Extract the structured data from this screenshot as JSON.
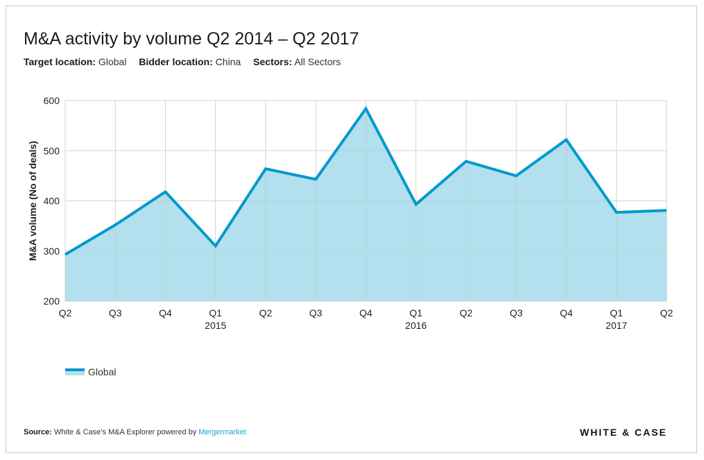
{
  "header": {
    "title": "M&A activity by volume Q2 2014 – Q2 2017",
    "filters": [
      {
        "label": "Target location:",
        "value": "Global"
      },
      {
        "label": "Bidder location:",
        "value": "China"
      },
      {
        "label": "Sectors:",
        "value": "All Sectors"
      }
    ]
  },
  "footer": {
    "source_label": "Source:",
    "source_text": "White & Case’s M&A Explorer powered by",
    "source_link": "Mergermarket",
    "logo": "WHITE & CASE"
  },
  "colors": {
    "line": "#0099cc",
    "fill": "#b2e0ee",
    "grid": "#c8c8c8"
  },
  "chart_data": {
    "type": "area",
    "title": "M&A activity by volume Q2 2014 – Q2 2017",
    "ylabel": "M&A volume (No of deals)",
    "xlabel": "",
    "ylim": [
      200,
      600
    ],
    "yticks": [
      200,
      300,
      400,
      500,
      600
    ],
    "grid": true,
    "legend_position": "bottom-left",
    "categories": [
      "Q2",
      "Q3",
      "Q4",
      "Q1",
      "Q2",
      "Q3",
      "Q4",
      "Q1",
      "Q2",
      "Q3",
      "Q4",
      "Q1",
      "Q2"
    ],
    "year_labels": [
      "",
      "",
      "",
      "2015",
      "",
      "",
      "",
      "2016",
      "",
      "",
      "",
      "2017",
      ""
    ],
    "series": [
      {
        "name": "Global",
        "values": [
          293,
          352,
          418,
          310,
          464,
          443,
          584,
          393,
          479,
          450,
          522,
          377,
          381
        ]
      }
    ]
  }
}
